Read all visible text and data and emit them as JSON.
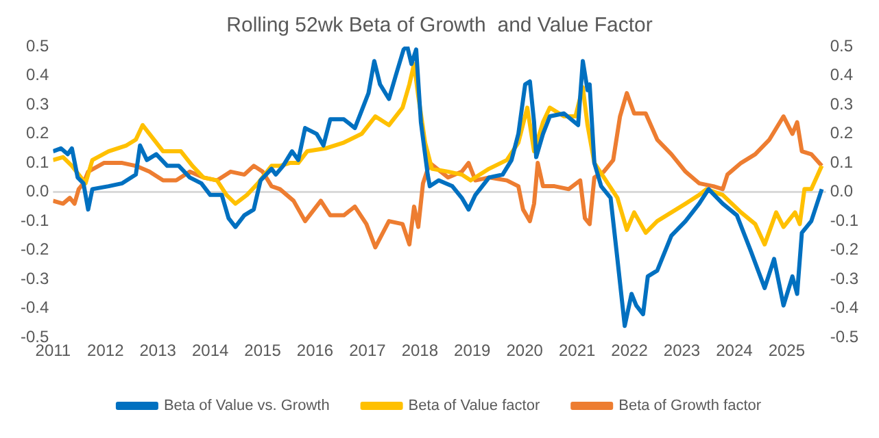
{
  "chart_data": {
    "type": "line",
    "title": "Rolling 52wk Beta of Growth  and Value Factor",
    "xlim": [
      2011,
      2025.75
    ],
    "xticks": [
      2011,
      2012,
      2013,
      2014,
      2015,
      2016,
      2017,
      2018,
      2019,
      2020,
      2021,
      2022,
      2023,
      2024,
      2025
    ],
    "ylim": [
      -0.5,
      0.5
    ],
    "yticks": [
      -0.5,
      -0.4,
      -0.3,
      -0.2,
      -0.1,
      {
        "value": 0,
        "label": "0.0"
      },
      0.1,
      0.2,
      0.3,
      0.4,
      0.5
    ],
    "y2lim": [
      -0.5,
      0.5
    ],
    "y2ticks": [
      -0.5,
      -0.4,
      -0.3,
      -0.2,
      -0.1,
      {
        "value": 0,
        "label": "0.0"
      },
      0.1,
      0.2,
      0.3,
      0.4,
      0.5
    ],
    "grid": false,
    "legend": "bottom",
    "marker": "none",
    "line_style": "solid",
    "ref_lines": [
      {
        "axis": "y",
        "value": 0,
        "color": "#d9d9d9"
      }
    ],
    "series": [
      {
        "name": "Beta of Value vs. Growth",
        "color": "#0070c0",
        "x": [
          2011.0,
          2011.15,
          2011.28,
          2011.36,
          2011.47,
          2011.58,
          2011.67,
          2011.75,
          2012.06,
          2012.32,
          2012.58,
          2012.66,
          2012.79,
          2012.97,
          2013.18,
          2013.4,
          2013.61,
          2013.83,
          2014.0,
          2014.22,
          2014.35,
          2014.48,
          2014.65,
          2014.83,
          2014.96,
          2015.17,
          2015.25,
          2015.39,
          2015.56,
          2015.68,
          2015.81,
          2016.03,
          2016.16,
          2016.29,
          2016.55,
          2016.76,
          2016.89,
          2017.02,
          2017.13,
          2017.24,
          2017.41,
          2017.54,
          2017.69,
          2017.76,
          2017.84,
          2017.93,
          2018.02,
          2018.15,
          2018.19,
          2018.36,
          2018.62,
          2018.8,
          2018.93,
          2019.06,
          2019.32,
          2019.58,
          2019.75,
          2019.88,
          2020.01,
          2020.1,
          2020.18,
          2020.22,
          2020.35,
          2020.48,
          2020.75,
          2021.02,
          2021.11,
          2021.2,
          2021.24,
          2021.33,
          2021.46,
          2021.64,
          2021.77,
          2021.91,
          2022.04,
          2022.13,
          2022.26,
          2022.35,
          2022.53,
          2022.8,
          2023.07,
          2023.33,
          2023.51,
          2023.78,
          2024.05,
          2024.31,
          2024.58,
          2024.76,
          2024.94,
          2025.11,
          2025.2,
          2025.29,
          2025.47,
          2025.67
        ],
        "values": [
          0.14,
          0.15,
          0.13,
          0.15,
          0.05,
          0.03,
          -0.06,
          0.01,
          0.02,
          0.03,
          0.06,
          0.16,
          0.11,
          0.13,
          0.09,
          0.09,
          0.05,
          0.03,
          -0.01,
          -0.01,
          -0.09,
          -0.12,
          -0.08,
          -0.06,
          0.04,
          0.08,
          0.06,
          0.09,
          0.14,
          0.11,
          0.22,
          0.2,
          0.16,
          0.25,
          0.25,
          0.22,
          0.28,
          0.34,
          0.45,
          0.37,
          0.32,
          0.4,
          0.49,
          0.5,
          0.44,
          0.49,
          0.24,
          0.06,
          0.02,
          0.04,
          0.02,
          -0.02,
          -0.06,
          -0.01,
          0.05,
          0.06,
          0.11,
          0.2,
          0.37,
          0.38,
          0.24,
          0.12,
          0.2,
          0.26,
          0.27,
          0.23,
          0.45,
          0.35,
          0.37,
          0.1,
          0.02,
          -0.02,
          -0.23,
          -0.46,
          -0.35,
          -0.39,
          -0.42,
          -0.29,
          -0.27,
          -0.15,
          -0.1,
          -0.04,
          0.01,
          -0.04,
          -0.08,
          -0.2,
          -0.33,
          -0.23,
          -0.39,
          -0.29,
          -0.35,
          -0.14,
          -0.1,
          0.01
        ]
      },
      {
        "name": "Beta of Value factor",
        "color": "#ffc000",
        "x": [
          2011.0,
          2011.19,
          2011.36,
          2011.49,
          2011.62,
          2011.75,
          2012.06,
          2012.4,
          2012.58,
          2012.71,
          2012.84,
          2013.1,
          2013.44,
          2013.66,
          2013.87,
          2014.13,
          2014.31,
          2014.48,
          2014.7,
          2014.91,
          2015.17,
          2015.33,
          2015.52,
          2015.68,
          2015.85,
          2016.2,
          2016.55,
          2016.89,
          2017.15,
          2017.41,
          2017.67,
          2017.8,
          2017.89,
          2017.97,
          2018.1,
          2018.23,
          2018.54,
          2018.8,
          2018.97,
          2019.32,
          2019.66,
          2019.88,
          2020.05,
          2020.18,
          2020.35,
          2020.48,
          2020.75,
          2020.97,
          2021.11,
          2021.2,
          2021.33,
          2021.55,
          2021.77,
          2021.95,
          2022.09,
          2022.31,
          2022.53,
          2022.8,
          2023.07,
          2023.33,
          2023.47,
          2023.78,
          2024.13,
          2024.4,
          2024.58,
          2024.8,
          2024.94,
          2025.16,
          2025.25,
          2025.34,
          2025.47,
          2025.67
        ],
        "values": [
          0.11,
          0.12,
          0.09,
          0.06,
          0.03,
          0.11,
          0.14,
          0.16,
          0.18,
          0.23,
          0.2,
          0.14,
          0.14,
          0.09,
          0.05,
          0.04,
          -0.01,
          -0.04,
          -0.01,
          0.03,
          0.09,
          0.09,
          0.1,
          0.1,
          0.14,
          0.15,
          0.17,
          0.2,
          0.26,
          0.23,
          0.29,
          0.37,
          0.44,
          0.33,
          0.17,
          0.08,
          0.07,
          0.06,
          0.04,
          0.08,
          0.11,
          0.17,
          0.29,
          0.14,
          0.24,
          0.29,
          0.26,
          0.26,
          0.36,
          0.23,
          0.1,
          0.04,
          -0.02,
          -0.13,
          -0.07,
          -0.14,
          -0.1,
          -0.07,
          -0.04,
          -0.01,
          0.01,
          -0.01,
          -0.07,
          -0.11,
          -0.18,
          -0.07,
          -0.12,
          -0.07,
          -0.11,
          0.01,
          0.01,
          0.09
        ]
      },
      {
        "name": "Beta of Growth factor",
        "color": "#ed7d31",
        "x": [
          2011.0,
          2011.19,
          2011.32,
          2011.41,
          2011.49,
          2011.58,
          2011.67,
          2011.97,
          2012.32,
          2012.58,
          2012.84,
          2013.1,
          2013.35,
          2013.61,
          2013.87,
          2014.13,
          2014.39,
          2014.65,
          2014.83,
          2015.0,
          2015.17,
          2015.33,
          2015.59,
          2015.81,
          2016.11,
          2016.29,
          2016.55,
          2016.76,
          2016.98,
          2017.15,
          2017.41,
          2017.67,
          2017.8,
          2017.89,
          2017.97,
          2018.06,
          2018.19,
          2018.54,
          2018.8,
          2018.93,
          2019.06,
          2019.32,
          2019.66,
          2019.88,
          2019.97,
          2020.1,
          2020.18,
          2020.25,
          2020.35,
          2020.57,
          2020.84,
          2021.06,
          2021.15,
          2021.24,
          2021.33,
          2021.51,
          2021.69,
          2021.82,
          2021.95,
          2022.09,
          2022.31,
          2022.53,
          2022.8,
          2023.07,
          2023.33,
          2023.6,
          2023.78,
          2023.87,
          2024.13,
          2024.4,
          2024.67,
          2024.94,
          2025.11,
          2025.2,
          2025.29,
          2025.47,
          2025.67
        ],
        "values": [
          -0.03,
          -0.04,
          -0.02,
          -0.04,
          0.01,
          0.03,
          0.07,
          0.1,
          0.1,
          0.09,
          0.07,
          0.04,
          0.04,
          0.07,
          0.05,
          0.04,
          0.07,
          0.06,
          0.09,
          0.07,
          0.02,
          0.01,
          -0.03,
          -0.1,
          -0.03,
          -0.08,
          -0.08,
          -0.05,
          -0.11,
          -0.19,
          -0.1,
          -0.11,
          -0.18,
          -0.05,
          -0.12,
          0.03,
          0.1,
          0.05,
          0.07,
          0.1,
          0.04,
          0.05,
          0.04,
          0.02,
          -0.06,
          -0.1,
          -0.04,
          0.1,
          0.02,
          0.02,
          0.01,
          0.04,
          -0.09,
          -0.11,
          0.05,
          0.07,
          0.11,
          0.26,
          0.34,
          0.27,
          0.27,
          0.18,
          0.13,
          0.07,
          0.03,
          0.02,
          0.01,
          0.06,
          0.1,
          0.13,
          0.18,
          0.26,
          0.2,
          0.24,
          0.14,
          0.13,
          0.09
        ]
      }
    ]
  }
}
